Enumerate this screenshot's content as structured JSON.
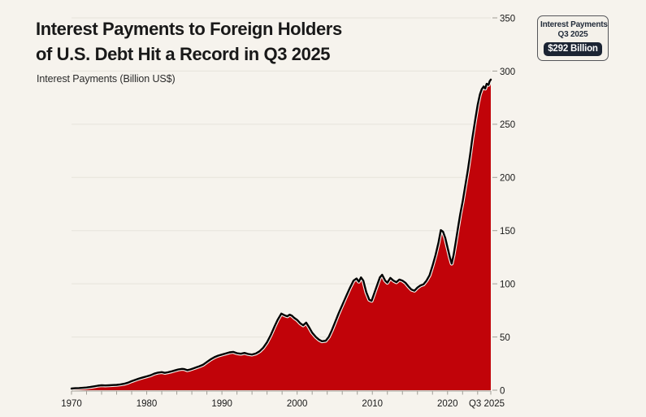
{
  "page": {
    "background": "#f6f3ed"
  },
  "header": {
    "title_line1": "Interest Payments to Foreign Holders",
    "title_line2": "of U.S. Debt Hit a Record in Q3 2025",
    "subtitle": "Interest Payments (Billion US$)"
  },
  "chart_data": {
    "type": "area",
    "title": "Interest Payments to Foreign Holders of U.S. Debt Hit a Record in Q3 2025",
    "ylabel": "Interest Payments (Billion US$)",
    "xlabel": "",
    "xlim": [
      1970,
      2025.75
    ],
    "ylim": [
      0,
      350
    ],
    "grid": "horizontal",
    "legend": "none",
    "yticks": [
      0,
      50,
      100,
      150,
      200,
      250,
      300,
      350
    ],
    "xticks": [
      {
        "x": 1970,
        "label": "1970"
      },
      {
        "x": 1980,
        "label": "1980"
      },
      {
        "x": 1990,
        "label": "1990"
      },
      {
        "x": 2000,
        "label": "2000"
      },
      {
        "x": 2010,
        "label": "2010"
      },
      {
        "x": 2020,
        "label": "2020"
      },
      {
        "x": 2025.75,
        "label": "Q3 2025"
      }
    ],
    "minor_xtick_step": 2,
    "colors": {
      "area_fill": "#c10309",
      "line": "#000000",
      "line_halo": "#f7f4ee",
      "grid": "#e6e3db",
      "tick": "#a09d95",
      "axis_text": "#191919"
    },
    "annotation": {
      "label": "Interest Payments",
      "period": "Q3 2025",
      "value": "$292 Billion"
    },
    "series": [
      {
        "name": "Interest Payments (Billion US$)",
        "points": [
          [
            1970,
            1.5
          ],
          [
            1970.5,
            1.8
          ],
          [
            1971,
            2
          ],
          [
            1971.5,
            2.2
          ],
          [
            1972,
            2.5
          ],
          [
            1972.5,
            3
          ],
          [
            1973,
            3.6
          ],
          [
            1973.5,
            4.2
          ],
          [
            1974,
            4.6
          ],
          [
            1974.5,
            4.4
          ],
          [
            1975,
            4.6
          ],
          [
            1975.5,
            4.8
          ],
          [
            1976,
            5
          ],
          [
            1976.5,
            5.4
          ],
          [
            1977,
            6
          ],
          [
            1977.5,
            7
          ],
          [
            1978,
            8.5
          ],
          [
            1978.5,
            9.8
          ],
          [
            1979,
            11
          ],
          [
            1979.5,
            12
          ],
          [
            1980,
            13
          ],
          [
            1980.5,
            14
          ],
          [
            1981,
            15.5
          ],
          [
            1981.5,
            16.5
          ],
          [
            1982,
            17
          ],
          [
            1982.4,
            16.3
          ],
          [
            1982.8,
            16.8
          ],
          [
            1983.2,
            17.5
          ],
          [
            1983.7,
            18.5
          ],
          [
            1984.2,
            19.5
          ],
          [
            1984.7,
            20
          ],
          [
            1985,
            19.8
          ],
          [
            1985.4,
            18.8
          ],
          [
            1985.8,
            19.5
          ],
          [
            1986.2,
            20.5
          ],
          [
            1986.6,
            21.5
          ],
          [
            1987,
            22.5
          ],
          [
            1987.5,
            24
          ],
          [
            1988,
            26.5
          ],
          [
            1988.5,
            29
          ],
          [
            1989,
            31
          ],
          [
            1989.5,
            32.5
          ],
          [
            1990,
            33.5
          ],
          [
            1990.5,
            34.5
          ],
          [
            1991,
            35.5
          ],
          [
            1991.5,
            36
          ],
          [
            1992,
            34.8
          ],
          [
            1992.5,
            34.2
          ],
          [
            1993,
            35
          ],
          [
            1993.5,
            34
          ],
          [
            1994,
            33.5
          ],
          [
            1994.5,
            34.5
          ],
          [
            1995,
            36.5
          ],
          [
            1995.5,
            40
          ],
          [
            1996,
            45
          ],
          [
            1996.5,
            52
          ],
          [
            1997,
            60
          ],
          [
            1997.4,
            66
          ],
          [
            1997.9,
            72
          ],
          [
            1998.3,
            70.5
          ],
          [
            1998.7,
            69.5
          ],
          [
            1999,
            71
          ],
          [
            1999.3,
            70
          ],
          [
            1999.6,
            68
          ],
          [
            2000,
            66
          ],
          [
            2000.4,
            63
          ],
          [
            2000.8,
            61
          ],
          [
            2001.2,
            63.5
          ],
          [
            2001.6,
            59
          ],
          [
            2002,
            54
          ],
          [
            2002.5,
            50
          ],
          [
            2002.9,
            47.5
          ],
          [
            2003.3,
            46
          ],
          [
            2003.8,
            46.5
          ],
          [
            2004.2,
            50
          ],
          [
            2004.6,
            56
          ],
          [
            2005,
            63
          ],
          [
            2005.5,
            72
          ],
          [
            2006,
            80
          ],
          [
            2006.5,
            88
          ],
          [
            2007,
            96
          ],
          [
            2007.5,
            103
          ],
          [
            2007.9,
            105
          ],
          [
            2008.2,
            102
          ],
          [
            2008.5,
            106
          ],
          [
            2008.8,
            103
          ],
          [
            2009.2,
            92
          ],
          [
            2009.6,
            85
          ],
          [
            2009.9,
            84
          ],
          [
            2010.3,
            92
          ],
          [
            2010.7,
            100
          ],
          [
            2011,
            106
          ],
          [
            2011.3,
            108.5
          ],
          [
            2011.7,
            103
          ],
          [
            2012,
            101
          ],
          [
            2012.4,
            105.5
          ],
          [
            2012.8,
            103
          ],
          [
            2013.2,
            101.5
          ],
          [
            2013.6,
            104
          ],
          [
            2014,
            103
          ],
          [
            2014.4,
            101
          ],
          [
            2014.8,
            97.5
          ],
          [
            2015.2,
            94.5
          ],
          [
            2015.6,
            93.5
          ],
          [
            2016,
            96.5
          ],
          [
            2016.4,
            98.5
          ],
          [
            2016.8,
            99.5
          ],
          [
            2017.2,
            103
          ],
          [
            2017.6,
            108
          ],
          [
            2018,
            117
          ],
          [
            2018.4,
            127
          ],
          [
            2018.8,
            139
          ],
          [
            2019.1,
            150.5
          ],
          [
            2019.4,
            149
          ],
          [
            2019.7,
            143
          ],
          [
            2020,
            134
          ],
          [
            2020.3,
            125
          ],
          [
            2020.55,
            119
          ],
          [
            2020.8,
            127
          ],
          [
            2021.1,
            140
          ],
          [
            2021.4,
            153
          ],
          [
            2021.7,
            166
          ],
          [
            2022,
            177
          ],
          [
            2022.3,
            190
          ],
          [
            2022.7,
            207
          ],
          [
            2023,
            221
          ],
          [
            2023.3,
            237
          ],
          [
            2023.7,
            255
          ],
          [
            2024,
            268
          ],
          [
            2024.3,
            278
          ],
          [
            2024.55,
            283
          ],
          [
            2024.8,
            285.5
          ],
          [
            2025,
            283.5
          ],
          [
            2025.2,
            288
          ],
          [
            2025.45,
            287
          ],
          [
            2025.6,
            290.5
          ],
          [
            2025.75,
            292
          ]
        ]
      }
    ]
  }
}
